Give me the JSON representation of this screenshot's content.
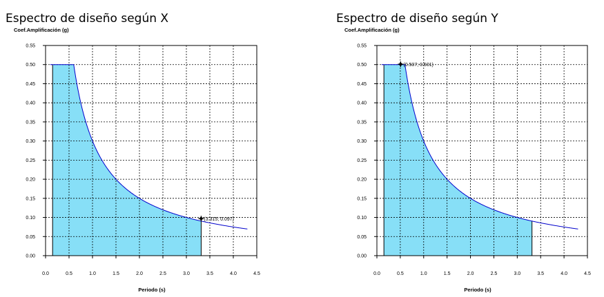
{
  "chart_data": [
    {
      "type": "area",
      "title": "Espectro de diseño según X",
      "ylabel": "Coef.Amplificación (g)",
      "xlabel": "Periodo (s)",
      "xlim": [
        0.0,
        4.5
      ],
      "ylim": [
        0.0,
        0.55
      ],
      "xticks": [
        "0.0",
        "0.5",
        "1.0",
        "1.5",
        "2.0",
        "2.5",
        "3.0",
        "3.5",
        "4.0",
        "4.5"
      ],
      "yticks": [
        "0.00",
        "0.05",
        "0.10",
        "0.15",
        "0.20",
        "0.25",
        "0.30",
        "0.35",
        "0.40",
        "0.45",
        "0.50",
        "0.55"
      ],
      "grid": true,
      "spectrum": {
        "t_start": 0.0,
        "plateau_start": 0.1,
        "plateau_end": 0.6,
        "plateau_value": 0.5,
        "t_end": 4.3
      },
      "shaded_range": [
        0.15,
        3.315
      ],
      "marker": {
        "x": 3.315,
        "y": 0.097,
        "label": "(3.315; 0.097)"
      },
      "colors": {
        "line": "#0000cc",
        "fill": "#87dff7",
        "grid": "#000000"
      }
    },
    {
      "type": "area",
      "title": "Espectro de diseño según Y",
      "ylabel": "Coef.Amplificación (g)",
      "xlabel": "Periodo (s)",
      "xlim": [
        0.0,
        4.5
      ],
      "ylim": [
        0.0,
        0.55
      ],
      "xticks": [
        "0.0",
        "0.5",
        "1.0",
        "1.5",
        "2.0",
        "2.5",
        "3.0",
        "3.5",
        "4.0",
        "4.5"
      ],
      "yticks": [
        "0.00",
        "0.05",
        "0.10",
        "0.15",
        "0.20",
        "0.25",
        "0.30",
        "0.35",
        "0.40",
        "0.45",
        "0.50",
        "0.55"
      ],
      "grid": true,
      "spectrum": {
        "t_start": 0.0,
        "plateau_start": 0.1,
        "plateau_end": 0.6,
        "plateau_value": 0.5,
        "t_end": 4.3
      },
      "shaded_range": [
        0.15,
        3.315
      ],
      "marker": {
        "x": 0.507,
        "y": 0.501,
        "label": "(0.507; 0.501)"
      },
      "colors": {
        "line": "#0000cc",
        "fill": "#87dff7",
        "grid": "#000000"
      }
    }
  ]
}
